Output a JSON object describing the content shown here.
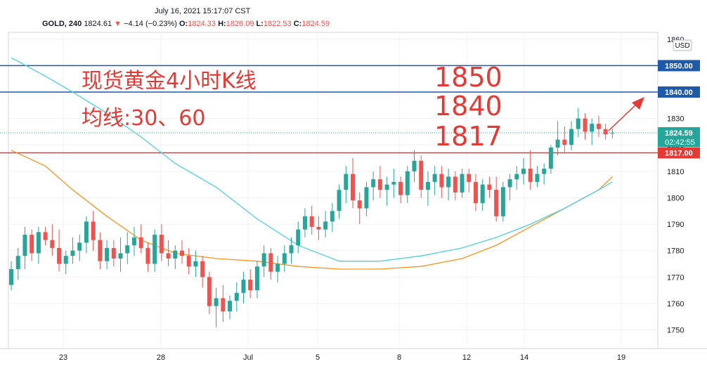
{
  "header": {
    "datetime": "July 16, 2021 15:17:07 CST",
    "symbol": "GOLD, 240",
    "last": "1824.61",
    "change": "−4.14 (−0.23%)",
    "o_label": "O:",
    "o_value": "1824.33",
    "h_label": "H:",
    "h_value": "1826.09",
    "l_label": "L:",
    "l_value": "1822.53",
    "c_label": "C:",
    "c_value": "1824.59"
  },
  "annotations": {
    "title": "现货黄金4小时K线",
    "ma": "均线:30、60",
    "level1": "1850",
    "level2": "1840",
    "level3": "1817"
  },
  "chart_data": {
    "type": "candlestick",
    "currency": "USD",
    "y_ticks": [
      1750,
      1760,
      1770,
      1780,
      1790,
      1800,
      1810,
      1820,
      1830,
      1840,
      1850,
      1860
    ],
    "x_ticks": [
      "23",
      "28",
      "Jul",
      "5",
      "8",
      "12",
      "14",
      "19"
    ],
    "price_labels": [
      {
        "value": 1850,
        "text": "1850.00",
        "color": "#1e5aa8"
      },
      {
        "value": 1840,
        "text": "1840.00",
        "color": "#1e5aa8"
      },
      {
        "value": 1817,
        "text": "1817.00",
        "color": "#e53935"
      }
    ],
    "current_price": {
      "value": 1824.59,
      "text": "1824.59",
      "countdown": "02:42:55",
      "color": "#26a69a"
    },
    "horizontal_lines": [
      {
        "value": 1850,
        "color": "#1e5aa8"
      },
      {
        "value": 1840,
        "color": "#1e5aa8"
      },
      {
        "value": 1817,
        "color": "#e53935"
      }
    ],
    "up_color": "#26a69a",
    "down_color": "#ef5350",
    "candles": [
      [
        1767,
        1776,
        1765,
        1773
      ],
      [
        1773,
        1781,
        1769,
        1778
      ],
      [
        1778,
        1789,
        1773,
        1786
      ],
      [
        1786,
        1788,
        1776,
        1779
      ],
      [
        1779,
        1789,
        1775,
        1787
      ],
      [
        1787,
        1789,
        1782,
        1784
      ],
      [
        1784,
        1790,
        1778,
        1781
      ],
      [
        1781,
        1788,
        1772,
        1775
      ],
      [
        1775,
        1780,
        1771,
        1778
      ],
      [
        1778,
        1785,
        1775,
        1780
      ],
      [
        1780,
        1786,
        1776,
        1783
      ],
      [
        1783,
        1793,
        1779,
        1791
      ],
      [
        1791,
        1795,
        1780,
        1784
      ],
      [
        1784,
        1787,
        1773,
        1776
      ],
      [
        1776,
        1784,
        1773,
        1781
      ],
      [
        1781,
        1784,
        1774,
        1777
      ],
      [
        1777,
        1785,
        1772,
        1779
      ],
      [
        1779,
        1787,
        1775,
        1782
      ],
      [
        1782,
        1789,
        1778,
        1785
      ],
      [
        1785,
        1790,
        1779,
        1781
      ],
      [
        1781,
        1783,
        1772,
        1775
      ],
      [
        1775,
        1788,
        1772,
        1786
      ],
      [
        1786,
        1790,
        1776,
        1779
      ],
      [
        1779,
        1784,
        1774,
        1777
      ],
      [
        1777,
        1782,
        1773,
        1780
      ],
      [
        1780,
        1784,
        1775,
        1778
      ],
      [
        1778,
        1781,
        1771,
        1774
      ],
      [
        1774,
        1780,
        1770,
        1776
      ],
      [
        1776,
        1778,
        1766,
        1770
      ],
      [
        1770,
        1772,
        1756,
        1759
      ],
      [
        1759,
        1766,
        1751,
        1762
      ],
      [
        1762,
        1767,
        1753,
        1757
      ],
      [
        1757,
        1763,
        1754,
        1761
      ],
      [
        1761,
        1768,
        1757,
        1764
      ],
      [
        1764,
        1772,
        1760,
        1769
      ],
      [
        1769,
        1773,
        1762,
        1765
      ],
      [
        1765,
        1776,
        1762,
        1774
      ],
      [
        1774,
        1782,
        1770,
        1779
      ],
      [
        1779,
        1781,
        1769,
        1772
      ],
      [
        1772,
        1778,
        1768,
        1775
      ],
      [
        1775,
        1782,
        1772,
        1779
      ],
      [
        1779,
        1785,
        1775,
        1782
      ],
      [
        1782,
        1791,
        1779,
        1788
      ],
      [
        1788,
        1796,
        1785,
        1793
      ],
      [
        1793,
        1797,
        1786,
        1789
      ],
      [
        1789,
        1793,
        1784,
        1788
      ],
      [
        1788,
        1795,
        1785,
        1791
      ],
      [
        1791,
        1798,
        1787,
        1795
      ],
      [
        1795,
        1805,
        1792,
        1803
      ],
      [
        1803,
        1812,
        1798,
        1809
      ],
      [
        1809,
        1815,
        1796,
        1799
      ],
      [
        1799,
        1802,
        1790,
        1796
      ],
      [
        1796,
        1806,
        1793,
        1804
      ],
      [
        1804,
        1810,
        1799,
        1807
      ],
      [
        1807,
        1812,
        1800,
        1803
      ],
      [
        1803,
        1808,
        1797,
        1805
      ],
      [
        1805,
        1811,
        1800,
        1806
      ],
      [
        1806,
        1808,
        1798,
        1801
      ],
      [
        1801,
        1812,
        1798,
        1810
      ],
      [
        1810,
        1818,
        1806,
        1814
      ],
      [
        1814,
        1816,
        1800,
        1803
      ],
      [
        1803,
        1810,
        1797,
        1806
      ],
      [
        1806,
        1812,
        1801,
        1809
      ],
      [
        1809,
        1812,
        1800,
        1804
      ],
      [
        1804,
        1811,
        1799,
        1808
      ],
      [
        1808,
        1810,
        1799,
        1802
      ],
      [
        1802,
        1811,
        1800,
        1809
      ],
      [
        1809,
        1811,
        1802,
        1806
      ],
      [
        1806,
        1809,
        1795,
        1798
      ],
      [
        1798,
        1807,
        1795,
        1805
      ],
      [
        1805,
        1808,
        1800,
        1803
      ],
      [
        1803,
        1808,
        1791,
        1793
      ],
      [
        1793,
        1806,
        1791,
        1804
      ],
      [
        1804,
        1809,
        1799,
        1807
      ],
      [
        1807,
        1812,
        1803,
        1809
      ],
      [
        1809,
        1815,
        1805,
        1811
      ],
      [
        1811,
        1818,
        1803,
        1806
      ],
      [
        1806,
        1812,
        1804,
        1809
      ],
      [
        1809,
        1813,
        1805,
        1811
      ],
      [
        1811,
        1820,
        1809,
        1819
      ],
      [
        1819,
        1829,
        1816,
        1822
      ],
      [
        1822,
        1827,
        1817,
        1820
      ],
      [
        1820,
        1829,
        1818,
        1826
      ],
      [
        1826,
        1834,
        1823,
        1830
      ],
      [
        1830,
        1832,
        1822,
        1825
      ],
      [
        1825,
        1830,
        1820,
        1828
      ],
      [
        1828,
        1831,
        1823,
        1826
      ],
      [
        1826,
        1828,
        1822,
        1824
      ],
      [
        1824.33,
        1826.09,
        1822.53,
        1824.59
      ]
    ],
    "ma30": [
      [
        0,
        1818
      ],
      [
        5,
        1812
      ],
      [
        9,
        1803
      ],
      [
        14,
        1793
      ],
      [
        19,
        1784
      ],
      [
        24,
        1779
      ],
      [
        30,
        1777
      ],
      [
        36,
        1776
      ],
      [
        42,
        1774
      ],
      [
        48,
        1773
      ],
      [
        54,
        1773
      ],
      [
        60,
        1774
      ],
      [
        66,
        1777
      ],
      [
        71,
        1782
      ],
      [
        76,
        1789
      ],
      [
        81,
        1796
      ],
      [
        86,
        1803
      ],
      [
        88,
        1808
      ]
    ],
    "ma60": [
      [
        0,
        1853
      ],
      [
        5,
        1846
      ],
      [
        9,
        1840
      ],
      [
        14,
        1832
      ],
      [
        19,
        1823
      ],
      [
        24,
        1813
      ],
      [
        30,
        1804
      ],
      [
        36,
        1792
      ],
      [
        42,
        1782
      ],
      [
        48,
        1776
      ],
      [
        54,
        1776
      ],
      [
        60,
        1778
      ],
      [
        66,
        1781
      ],
      [
        71,
        1785
      ],
      [
        76,
        1790
      ],
      [
        81,
        1796
      ],
      [
        86,
        1803
      ],
      [
        88,
        1806
      ]
    ]
  }
}
